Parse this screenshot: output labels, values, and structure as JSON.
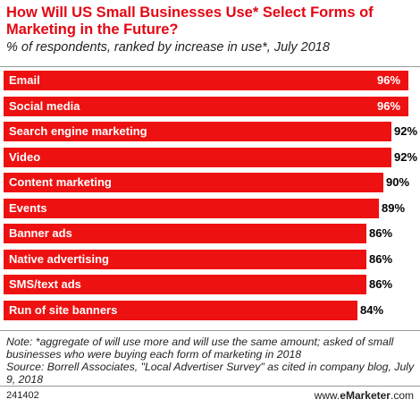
{
  "chart_data": {
    "type": "bar",
    "orientation": "horizontal",
    "title": "How Will US Small Businesses Use* Select Forms of Marketing in the Future?",
    "subtitle": "% of respondents, ranked by increase in use*, July 2018",
    "categories": [
      "Email",
      "Social media",
      "Search engine marketing",
      "Video",
      "Content marketing",
      "Events",
      "Banner ads",
      "Native advertising",
      "SMS/text ads",
      "Run of site banners"
    ],
    "values": [
      96,
      96,
      92,
      92,
      90,
      89,
      86,
      86,
      86,
      84
    ],
    "value_labels": [
      "96%",
      "96%",
      "92%",
      "92%",
      "90%",
      "89%",
      "86%",
      "86%",
      "86%",
      "84%"
    ],
    "bar_color": "#ee1111",
    "title_color": "#e30613"
  },
  "note": "Note: *aggregate of will use more and will use the same amount; asked of small businesses who were buying each form of marketing in 2018",
  "source": "Source: Borrell Associates, \"Local Advertiser Survey\" as cited in company blog, July 9, 2018",
  "footer": {
    "chart_id": "241402",
    "brand_prefix": "www.",
    "brand_e": "e",
    "brand_name": "Marketer",
    "brand_suffix": ".com"
  }
}
